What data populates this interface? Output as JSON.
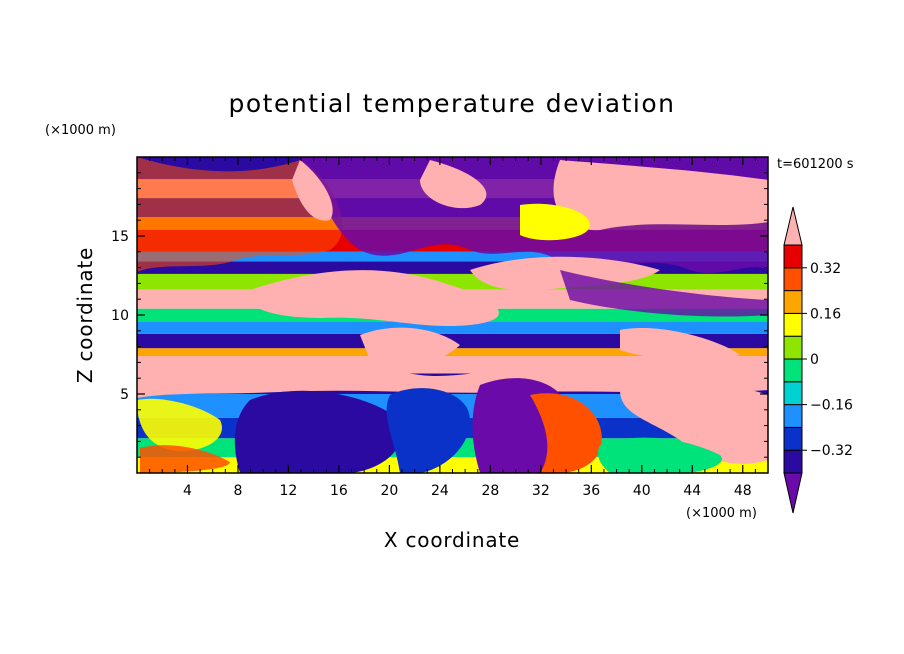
{
  "chart_data": {
    "type": "heatmap",
    "title": "potential temperature deviation",
    "xlabel": "X coordinate",
    "ylabel": "Z coordinate",
    "x_unit": "(×1000 m)",
    "y_unit": "(×1000 m)",
    "time_label": "t=601200 s",
    "xlim": [
      0,
      50
    ],
    "ylim": [
      0,
      20
    ],
    "x_ticks": [
      4,
      8,
      12,
      16,
      20,
      24,
      28,
      32,
      36,
      40,
      44,
      48
    ],
    "y_ticks": [
      5,
      10,
      15
    ],
    "colorbar": {
      "levels": [
        -0.4,
        -0.32,
        -0.24,
        -0.16,
        -0.08,
        0,
        0.08,
        0.16,
        0.24,
        0.32,
        0.4
      ],
      "labeled_levels": [
        -0.32,
        -0.16,
        0,
        0.16,
        0.32
      ],
      "labels": [
        "0.32",
        "0.16",
        "0",
        "−0.16",
        "−0.32"
      ],
      "colors_low_to_high": [
        "#6a0aa8",
        "#2a0aa0",
        "#0a32c8",
        "#1e90ff",
        "#00d2d2",
        "#00e27a",
        "#8ee600",
        "#ffff00",
        "#ffa500",
        "#ff5000",
        "#e60000",
        "#ffb0b0"
      ],
      "extend": "both"
    },
    "bands": [
      {
        "z": [
          0.0,
          1.0
        ],
        "value": 0.12
      },
      {
        "z": [
          1.0,
          2.2
        ],
        "value": -0.02
      },
      {
        "z": [
          2.2,
          3.5
        ],
        "value": -0.3
      },
      {
        "z": [
          3.5,
          5.0
        ],
        "value": -0.2
      },
      {
        "z": [
          5.0,
          6.3
        ],
        "value": -0.36
      },
      {
        "z": [
          6.3,
          7.4
        ],
        "value": 0.42
      },
      {
        "z": [
          7.4,
          7.9
        ],
        "value": 0.2
      },
      {
        "z": [
          7.9,
          8.8
        ],
        "value": -0.37
      },
      {
        "z": [
          8.8,
          9.6
        ],
        "value": -0.2
      },
      {
        "z": [
          9.6,
          10.4
        ],
        "value": -0.05
      },
      {
        "z": [
          10.4,
          11.6
        ],
        "value": 0.42
      },
      {
        "z": [
          11.6,
          12.6
        ],
        "value": 0.04
      },
      {
        "z": [
          12.6,
          13.4
        ],
        "value": -0.36
      },
      {
        "z": [
          13.4,
          14.0
        ],
        "value": -0.2
      },
      {
        "z": [
          14.0,
          15.4
        ],
        "value": 0.34
      },
      {
        "z": [
          15.4,
          16.2
        ],
        "value": 0.18
      },
      {
        "z": [
          16.2,
          17.4
        ],
        "value": -0.38
      },
      {
        "z": [
          17.4,
          18.6
        ],
        "value": 0.42
      },
      {
        "z": [
          18.6,
          20.0
        ],
        "value": -0.38
      }
    ]
  }
}
